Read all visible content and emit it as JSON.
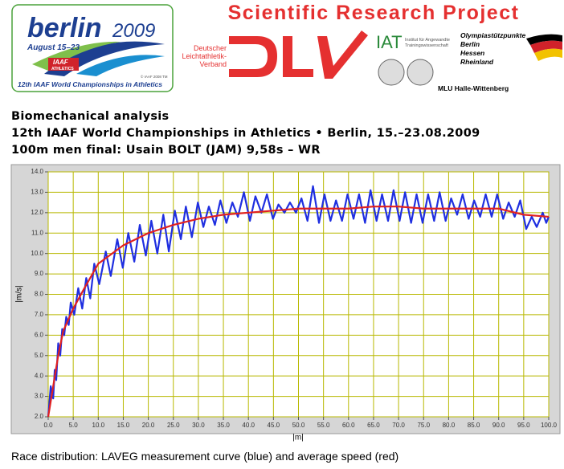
{
  "header": {
    "berlin": "berlin",
    "year": "2009",
    "dates": "August 15–23",
    "iaaf": "IAAF",
    "athletics": "ATHLETICS",
    "copyright": "© IAAF 2008 TM",
    "championships": "12th IAAF World Championships in Athletics",
    "project": "Scientific Research Project",
    "dlv_name": [
      "Deutscher",
      "Leichtathletik-",
      "Verband"
    ],
    "iat": "IAT",
    "iat_name": [
      "Institut für Angewandte",
      "Trainingswissenschaft"
    ],
    "osp": [
      "Olympiastützpunkte",
      "Berlin",
      "Hessen",
      "Rheinland"
    ],
    "mlu": "MLU Halle-Wittenberg"
  },
  "headings": [
    "Biomechanical analysis",
    "12th IAAF World Championships in Athletics • Berlin, 15.–23.08.2009",
    "100m men final: Usain BOLT (JAM) 9,58s – WR"
  ],
  "caption": "Race distribution: LAVEG measurement curve (blue) and average speed (red)",
  "chart_data": {
    "type": "line",
    "xlabel": "|m|",
    "ylabel": "|m/s|",
    "xlim": [
      0,
      100
    ],
    "ylim": [
      2,
      14
    ],
    "grid": true,
    "xticks": [
      {
        "value": 0,
        "label": "0.0"
      },
      {
        "value": 5,
        "label": "5.0"
      },
      {
        "value": 10,
        "label": "10.0"
      },
      {
        "value": 15,
        "label": "15.0"
      },
      {
        "value": 20,
        "label": "20.0"
      },
      {
        "value": 25,
        "label": "25.0"
      },
      {
        "value": 30,
        "label": "30.0"
      },
      {
        "value": 35,
        "label": "35.0"
      },
      {
        "value": 40,
        "label": "40.0"
      },
      {
        "value": 45,
        "label": "45.0"
      },
      {
        "value": 50,
        "label": "50.0"
      },
      {
        "value": 55,
        "label": "55.0"
      },
      {
        "value": 60,
        "label": "60.0"
      },
      {
        "value": 65,
        "label": "65.0"
      },
      {
        "value": 70,
        "label": "70.0"
      },
      {
        "value": 75,
        "label": "75.0"
      },
      {
        "value": 80,
        "label": "80.0"
      },
      {
        "value": 85,
        "label": "85.0"
      },
      {
        "value": 90,
        "label": "90.0"
      },
      {
        "value": 95,
        "label": "95.0"
      },
      {
        "value": 100,
        "label": "100.0"
      }
    ],
    "yticks": [
      {
        "value": 2,
        "label": "2.0"
      },
      {
        "value": 3,
        "label": "3.0"
      },
      {
        "value": 4,
        "label": "4.0"
      },
      {
        "value": 5,
        "label": "5.0"
      },
      {
        "value": 6,
        "label": "6.0"
      },
      {
        "value": 7,
        "label": "7.0"
      },
      {
        "value": 8,
        "label": "8.0"
      },
      {
        "value": 9,
        "label": "9.0"
      },
      {
        "value": 10,
        "label": "10.0"
      },
      {
        "value": 11,
        "label": "11.0"
      },
      {
        "value": 12,
        "label": "12.0"
      },
      {
        "value": 13,
        "label": "13.0"
      },
      {
        "value": 14,
        "label": "14.0"
      }
    ],
    "series": [
      {
        "color": "#1f2fe0",
        "x": [
          0,
          0.5,
          1,
          1.3,
          1.6,
          2,
          2.4,
          2.8,
          3.2,
          3.6,
          4.1,
          4.5,
          5.2,
          6,
          6.8,
          7.6,
          8.4,
          9.2,
          10.2,
          11.5,
          12.5,
          13.8,
          14.9,
          16,
          17.2,
          18.3,
          19.5,
          20.6,
          21.8,
          23,
          24.1,
          25.3,
          26.5,
          27.5,
          28.7,
          29.9,
          31,
          32.1,
          33.3,
          34.4,
          35.6,
          36.8,
          37.9,
          39.1,
          40.3,
          41.4,
          42.6,
          43.7,
          44.9,
          46,
          47.2,
          48.3,
          49.5,
          50.6,
          51.8,
          52.9,
          54.1,
          55.2,
          56.4,
          57.5,
          58.7,
          59.8,
          61,
          62.1,
          63.3,
          64.4,
          65.6,
          66.7,
          67.9,
          69,
          70.2,
          71.3,
          72.5,
          73.6,
          74.8,
          75.9,
          77.1,
          78.2,
          79.4,
          80.5,
          81.7,
          82.8,
          84,
          85.1,
          86.3,
          87.4,
          88.6,
          89.7,
          90.9,
          92,
          93.2,
          94.3,
          95.5,
          96.6,
          97.6,
          98.8,
          99.5,
          100
        ],
        "values": [
          2.0,
          3.5,
          2.9,
          4.3,
          3.8,
          5.6,
          5.0,
          6.3,
          6.0,
          6.9,
          6.5,
          7.6,
          7.0,
          8.3,
          7.3,
          8.8,
          7.8,
          9.5,
          8.5,
          10.1,
          8.9,
          10.7,
          9.3,
          11.0,
          9.6,
          11.4,
          9.9,
          11.6,
          10.0,
          11.9,
          10.1,
          12.1,
          10.7,
          12.3,
          10.8,
          12.5,
          11.3,
          12.3,
          11.4,
          12.6,
          11.5,
          12.5,
          11.8,
          13.0,
          11.6,
          12.8,
          12.0,
          12.9,
          11.7,
          12.4,
          12.0,
          12.5,
          12.0,
          12.7,
          11.6,
          13.3,
          11.5,
          12.9,
          11.6,
          12.6,
          11.6,
          12.9,
          11.7,
          12.9,
          11.5,
          13.1,
          11.6,
          12.9,
          11.6,
          13.1,
          11.6,
          13.0,
          11.5,
          12.9,
          11.5,
          12.9,
          11.6,
          13.0,
          11.6,
          12.7,
          11.9,
          12.9,
          11.7,
          12.6,
          11.8,
          12.9,
          11.8,
          12.9,
          11.7,
          12.5,
          11.8,
          12.6,
          11.2,
          11.8,
          11.3,
          12.0,
          11.5,
          11.8
        ]
      },
      {
        "color": "#e02020",
        "x": [
          0,
          1,
          2,
          3,
          5,
          7,
          10,
          15,
          20,
          25,
          30,
          35,
          40,
          45,
          50,
          55,
          60,
          65,
          70,
          75,
          80,
          85,
          90,
          95,
          100
        ],
        "values": [
          2.0,
          3.5,
          5.0,
          6.2,
          7.3,
          8.2,
          9.5,
          10.4,
          11.0,
          11.4,
          11.7,
          11.9,
          12.0,
          12.1,
          12.2,
          12.2,
          12.2,
          12.3,
          12.3,
          12.2,
          12.2,
          12.2,
          12.2,
          11.9,
          11.8
        ]
      }
    ]
  }
}
